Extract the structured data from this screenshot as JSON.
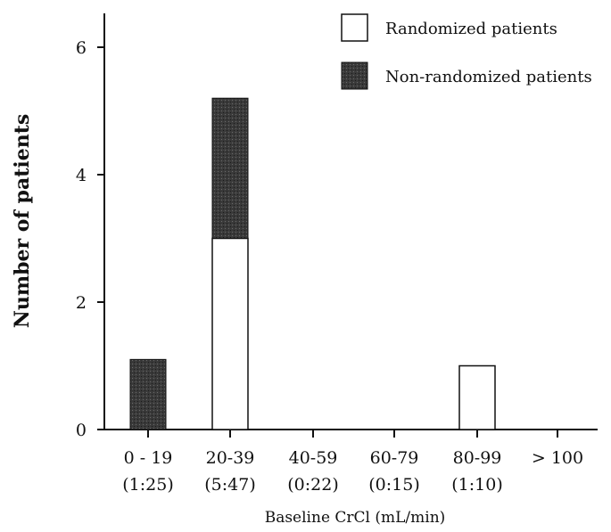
{
  "chart_data": {
    "type": "bar",
    "stacked": true,
    "categories": [
      "0 - 19",
      "20-39",
      "40-59",
      "60-79",
      "80-99",
      "> 100"
    ],
    "category_ratios": [
      "(1:25)",
      "(5:47)",
      "(0:22)",
      "(0:15)",
      "(1:10)",
      ""
    ],
    "series": [
      {
        "name": "Randomized patients",
        "values": [
          0,
          3,
          0,
          0,
          1,
          0
        ],
        "color": "#ffffff"
      },
      {
        "name": "Non-randomized patients",
        "values": [
          1.1,
          2.2,
          0,
          0,
          0,
          0
        ],
        "color": "#3a3a3a"
      }
    ],
    "xlabel": "Baseline CrCl (mL/min)",
    "ylabel": "Number of patients",
    "yticks": [
      0,
      2,
      4,
      6
    ],
    "ylim": [
      0,
      6.5
    ],
    "grid": false,
    "legend_position": "top-right"
  }
}
